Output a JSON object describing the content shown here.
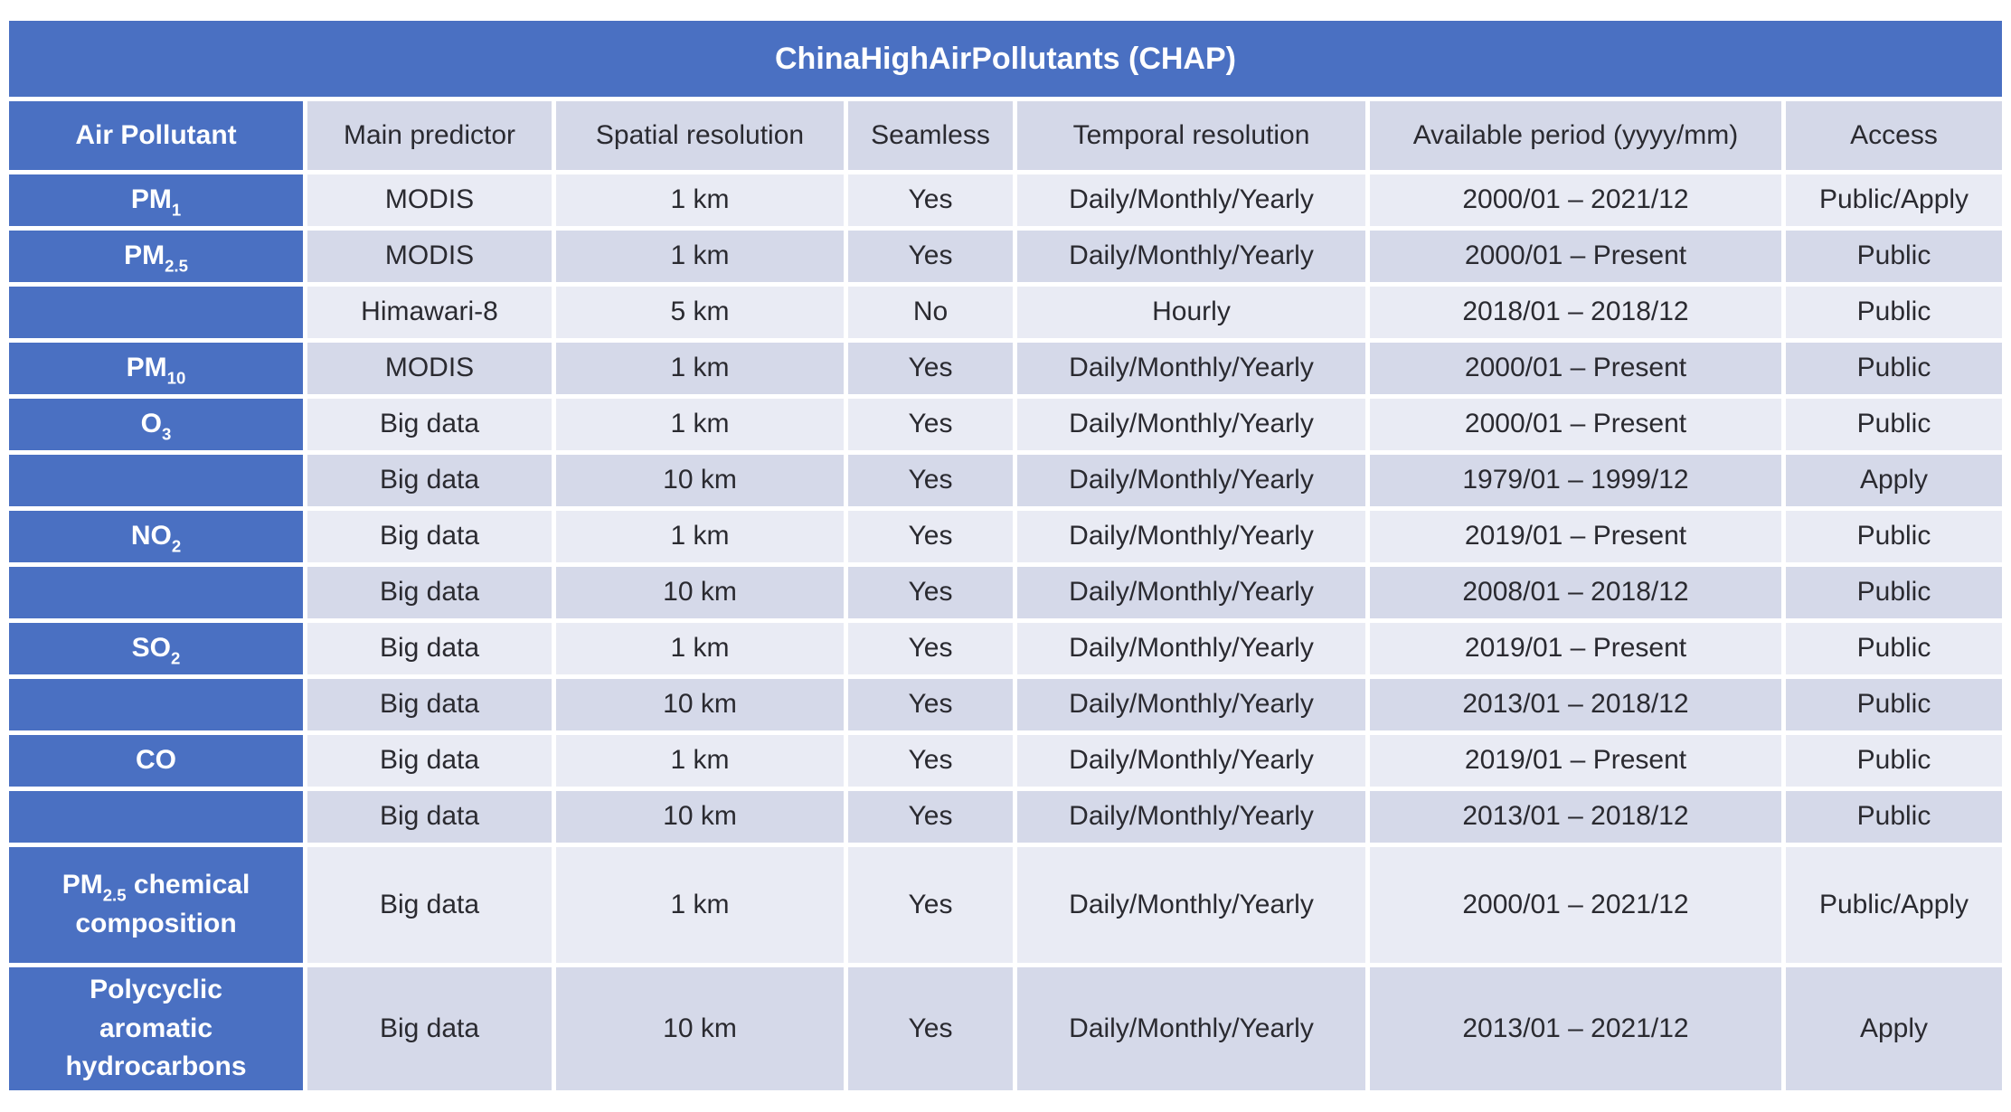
{
  "title": "ChinaHighAirPollutants (CHAP)",
  "colors": {
    "primary_blue": "#4A70C2",
    "row_light": "#E9EBF4",
    "row_dark": "#D5D9E9",
    "header_bg": "#D4D8E8",
    "text": "#2A2A30"
  },
  "chart_data": {
    "type": "table",
    "title": "ChinaHighAirPollutants (CHAP)",
    "columns": [
      "Air Pollutant",
      "Main predictor",
      "Spatial resolution",
      "Seamless",
      "Temporal resolution",
      "Available period (yyyy/mm)",
      "Access"
    ],
    "rows": [
      [
        "PM1",
        "MODIS",
        "1 km",
        "Yes",
        "Daily/Monthly/Yearly",
        "2000/01 – 2021/12",
        "Public/Apply"
      ],
      [
        "PM2.5",
        "MODIS",
        "1 km",
        "Yes",
        "Daily/Monthly/Yearly",
        "2000/01 – Present",
        "Public"
      ],
      [
        "",
        "Himawari-8",
        "5 km",
        "No",
        "Hourly",
        "2018/01 – 2018/12",
        "Public"
      ],
      [
        "PM10",
        "MODIS",
        "1 km",
        "Yes",
        "Daily/Monthly/Yearly",
        "2000/01 – Present",
        "Public"
      ],
      [
        "O3",
        "Big data",
        "1 km",
        "Yes",
        "Daily/Monthly/Yearly",
        "2000/01 – Present",
        "Public"
      ],
      [
        "",
        "Big data",
        "10 km",
        "Yes",
        "Daily/Monthly/Yearly",
        "1979/01 – 1999/12",
        "Apply"
      ],
      [
        "NO2",
        "Big data",
        "1 km",
        "Yes",
        "Daily/Monthly/Yearly",
        "2019/01 – Present",
        "Public"
      ],
      [
        "",
        "Big data",
        "10 km",
        "Yes",
        "Daily/Monthly/Yearly",
        "2008/01 – 2018/12",
        "Public"
      ],
      [
        "SO2",
        "Big data",
        "1 km",
        "Yes",
        "Daily/Monthly/Yearly",
        "2019/01 – Present",
        "Public"
      ],
      [
        "",
        "Big data",
        "10 km",
        "Yes",
        "Daily/Monthly/Yearly",
        "2013/01 – 2018/12",
        "Public"
      ],
      [
        "CO",
        "Big data",
        "1 km",
        "Yes",
        "Daily/Monthly/Yearly",
        "2019/01 – Present",
        "Public"
      ],
      [
        "",
        "Big data",
        "10 km",
        "Yes",
        "Daily/Monthly/Yearly",
        "2013/01 – 2018/12",
        "Public"
      ],
      [
        "PM2.5 chemical composition",
        "Big data",
        "1 km",
        "Yes",
        "Daily/Monthly/Yearly",
        "2000/01 – 2021/12",
        "Public/Apply"
      ],
      [
        "Polycyclic aromatic hydrocarbons",
        "Big data",
        "10 km",
        "Yes",
        "Daily/Monthly/Yearly",
        "2013/01 – 2021/12",
        "Apply"
      ]
    ]
  },
  "pollutant_display": [
    {
      "pre": "PM",
      "sub": "1",
      "post": ""
    },
    {
      "pre": "PM",
      "sub": "2.5",
      "post": ""
    },
    {
      "pre": "",
      "sub": "",
      "post": ""
    },
    {
      "pre": "PM",
      "sub": "10",
      "post": ""
    },
    {
      "pre": "O",
      "sub": "3",
      "post": ""
    },
    {
      "pre": "",
      "sub": "",
      "post": ""
    },
    {
      "pre": "NO",
      "sub": "2",
      "post": ""
    },
    {
      "pre": "",
      "sub": "",
      "post": ""
    },
    {
      "pre": "SO",
      "sub": "2",
      "post": ""
    },
    {
      "pre": "",
      "sub": "",
      "post": ""
    },
    {
      "pre": "CO",
      "sub": "",
      "post": ""
    },
    {
      "pre": "",
      "sub": "",
      "post": ""
    },
    {
      "pre": "PM",
      "sub": "2.5",
      "post": " chemical composition"
    },
    {
      "pre": "Polycyclic aromatic hydrocarbons",
      "sub": "",
      "post": ""
    }
  ]
}
